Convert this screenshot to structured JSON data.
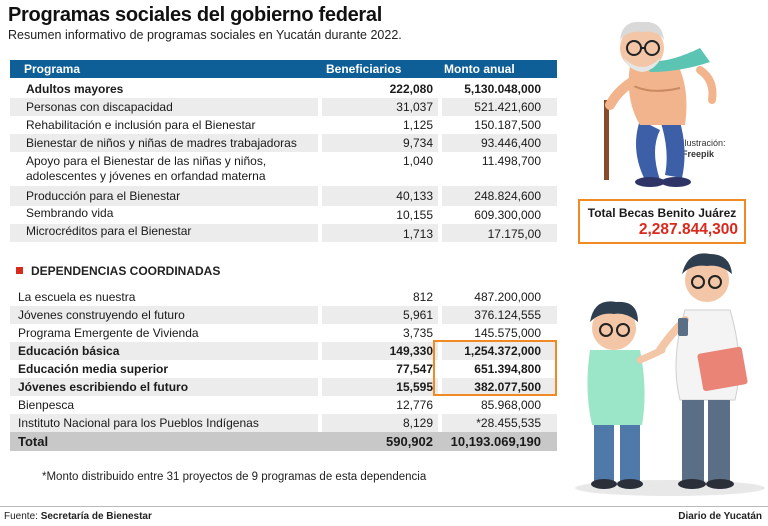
{
  "header": {
    "title": "Programas sociales del gobierno federal",
    "subtitle": "Resumen informativo de programas sociales en Yucatán durante 2022."
  },
  "table": {
    "columns": [
      "Programa",
      "Beneficiarios",
      "Monto anual"
    ],
    "rows": [
      {
        "programa": "Adultos mayores",
        "beneficiarios": "222,080",
        "monto": "5,130.048,000"
      },
      {
        "programa": "Personas con discapacidad",
        "beneficiarios": "31,037",
        "monto": "521.421,600"
      },
      {
        "programa": "Rehabilitación e inclusión para el Bienestar",
        "beneficiarios": "1,125",
        "monto": "150.187,500"
      },
      {
        "programa": "Bienestar de niños y niñas de madres trabajadoras",
        "beneficiarios": "9,734",
        "monto": "93.446,400"
      },
      {
        "programa": "Apoyo para el Bienestar de las niñas y niños,",
        "programa_line2": "adolescentes y jóvenes en orfandad materna",
        "beneficiarios": "1,040",
        "monto": "11.498,700"
      },
      {
        "programa": "Producción para el Bienestar",
        "beneficiarios": "40,133",
        "monto": "248.824,600"
      },
      {
        "programa": "Sembrando vida",
        "beneficiarios": "10,155",
        "monto": "609.300,000"
      },
      {
        "programa": "Microcréditos para el Bienestar",
        "beneficiarios": "1,713",
        "monto": "17.175,00"
      }
    ],
    "section_title": "DEPENDENCIAS COORDINADAS",
    "rows2": [
      {
        "programa": "La escuela es nuestra",
        "beneficiarios": "812",
        "monto": "487.200,000"
      },
      {
        "programa": "Jóvenes construyendo el futuro",
        "beneficiarios": "5,961",
        "monto": "376.124,555"
      },
      {
        "programa": "Programa Emergente de Vivienda",
        "beneficiarios": "3,735",
        "monto": "145.575,000"
      },
      {
        "programa": "Educación básica",
        "beneficiarios": "149,330",
        "monto": "1,254.372,000"
      },
      {
        "programa": "Educación media superior",
        "beneficiarios": "77,547",
        "monto": "651.394,800"
      },
      {
        "programa": "Jóvenes escribiendo el futuro",
        "beneficiarios": "15,595",
        "monto": "382.077,500"
      },
      {
        "programa": "Bienpesca",
        "beneficiarios": "12,776",
        "monto": "85.968,000"
      },
      {
        "programa": "Instituto Nacional para los Pueblos Indígenas",
        "beneficiarios": "8,129",
        "monto": "*28.455,535"
      }
    ],
    "total": {
      "label": "Total",
      "beneficiarios": "590,902",
      "monto": "10,193.069,190"
    }
  },
  "footnote": "*Monto distribuido entre 31 proyectos de 9 programas de esta dependencia",
  "becas": {
    "label": "Total Becas Benito Juárez",
    "value": "2,287.844,300"
  },
  "illustration_credit": {
    "label": "Ilustración:",
    "name": "Freepik"
  },
  "footer": {
    "source_label": "Fuente:",
    "source": "Secretaría de Bienestar",
    "brand": "Diario de Yucatán"
  },
  "colors": {
    "header_blue": "#0e5f97",
    "accent_orange": "#f08a24",
    "accent_red": "#d9291c",
    "total_gray": "#c8c8c8"
  }
}
